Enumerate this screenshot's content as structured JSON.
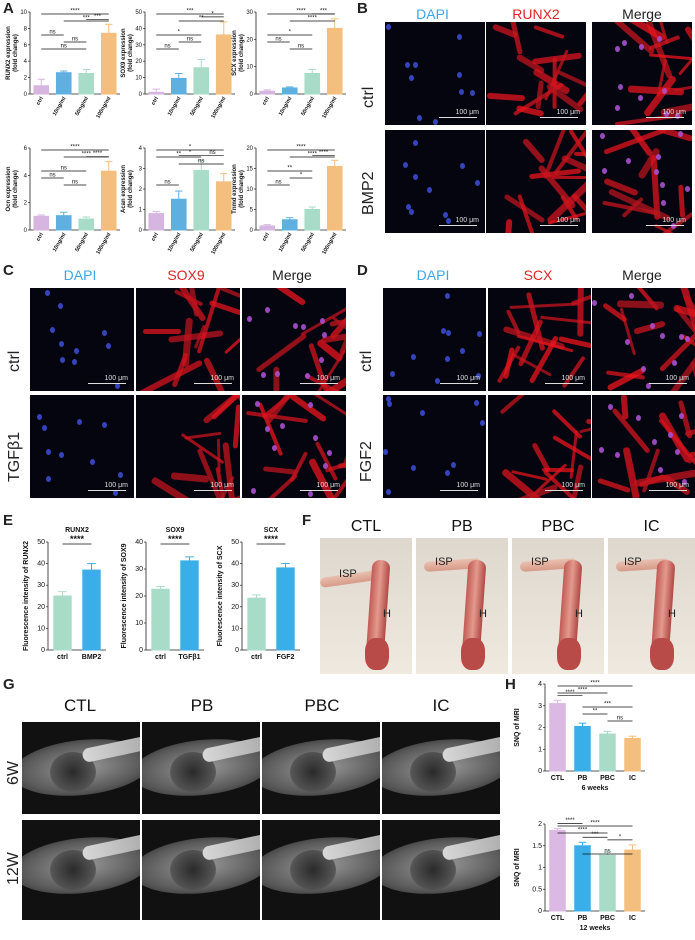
{
  "panels": {
    "A": "A",
    "B": "B",
    "C": "C",
    "D": "D",
    "E": "E",
    "F": "F",
    "G": "G",
    "H": "H"
  },
  "scale_bar": "100 μm",
  "panelA_charts": [
    {
      "id": "runx2",
      "ylabel": "RUNX2 expression",
      "ylabel2": "(fold change)",
      "categories": [
        "ctrl",
        "10ng/ml",
        "50ng/ml",
        "100ng/ml"
      ],
      "values": [
        1.0,
        2.6,
        2.5,
        7.4
      ],
      "errors": [
        0.8,
        0.2,
        0.5,
        1.1
      ],
      "ymax": 10,
      "yticks": [
        0,
        2,
        4,
        6,
        8,
        10
      ],
      "colors": [
        "#d6b6e0",
        "#5fb0e0",
        "#a8dcc8",
        "#f4bf7e"
      ],
      "sig": [
        {
          "a": 0,
          "b": 3,
          "t": "****"
        },
        {
          "a": 1,
          "b": 3,
          "t": "***"
        },
        {
          "a": 2,
          "b": 3,
          "t": "***"
        },
        {
          "a": 0,
          "b": 1,
          "t": "ns"
        },
        {
          "a": 1,
          "b": 2,
          "t": "ns"
        },
        {
          "a": 0,
          "b": 2,
          "t": "ns"
        }
      ]
    },
    {
      "id": "sox9",
      "ylabel": "SOX9 expression",
      "ylabel2": "(fold change)",
      "categories": [
        "ctrl",
        "10ng/ml",
        "50ng/ml",
        "100ng/ml"
      ],
      "values": [
        1.0,
        9.5,
        16.0,
        36.0
      ],
      "errors": [
        2.0,
        3.0,
        5.0,
        8.0
      ],
      "ymax": 50,
      "yticks": [
        0,
        10,
        20,
        30,
        40,
        50
      ],
      "colors": [
        "#d6b6e0",
        "#5fb0e0",
        "#a8dcc8",
        "#f4bf7e"
      ],
      "sig": [
        {
          "a": 0,
          "b": 3,
          "t": "***"
        },
        {
          "a": 1,
          "b": 3,
          "t": "**"
        },
        {
          "a": 2,
          "b": 3,
          "t": "*"
        },
        {
          "a": 0,
          "b": 2,
          "t": "*"
        },
        {
          "a": 1,
          "b": 2,
          "t": "ns"
        },
        {
          "a": 0,
          "b": 1,
          "t": "ns"
        }
      ]
    },
    {
      "id": "scx",
      "ylabel": "SCX expression",
      "ylabel2": "(fold change)",
      "categories": [
        "ctrl",
        "10ng/ml",
        "50ng/ml",
        "100ng/ml"
      ],
      "values": [
        1.0,
        2.2,
        7.5,
        24.0
      ],
      "errors": [
        0.5,
        0.4,
        1.5,
        3.5
      ],
      "ymax": 30,
      "yticks": [
        0,
        10,
        20,
        30
      ],
      "colors": [
        "#d6b6e0",
        "#5fb0e0",
        "#a8dcc8",
        "#f4bf7e"
      ],
      "sig": [
        {
          "a": 0,
          "b": 3,
          "t": "****"
        },
        {
          "a": 1,
          "b": 3,
          "t": "****"
        },
        {
          "a": 2,
          "b": 3,
          "t": "***"
        },
        {
          "a": 0,
          "b": 2,
          "t": "*"
        },
        {
          "a": 0,
          "b": 1,
          "t": "ns"
        },
        {
          "a": 1,
          "b": 2,
          "t": "ns"
        }
      ]
    },
    {
      "id": "ocn",
      "ylabel": "Ocn expression",
      "ylabel2": "(fold change)",
      "categories": [
        "ctrl",
        "10ng/ml",
        "50ng/ml",
        "100ng/ml"
      ],
      "values": [
        1.0,
        1.05,
        0.8,
        4.3
      ],
      "errors": [
        0.1,
        0.25,
        0.15,
        0.7
      ],
      "ymax": 6,
      "yticks": [
        0,
        2,
        4,
        6
      ],
      "colors": [
        "#d6b6e0",
        "#5fb0e0",
        "#a8dcc8",
        "#f4bf7e"
      ],
      "sig": [
        {
          "a": 0,
          "b": 3,
          "t": "****"
        },
        {
          "a": 1,
          "b": 3,
          "t": "****"
        },
        {
          "a": 2,
          "b": 3,
          "t": "****"
        },
        {
          "a": 0,
          "b": 2,
          "t": "ns"
        },
        {
          "a": 0,
          "b": 1,
          "t": "ns"
        },
        {
          "a": 1,
          "b": 2,
          "t": "ns"
        }
      ]
    },
    {
      "id": "acan",
      "ylabel": "Acan expression",
      "ylabel2": "(fold change)",
      "categories": [
        "ctrl",
        "10ng/ml",
        "50ng/ml",
        "100ng/ml"
      ],
      "values": [
        0.8,
        1.5,
        2.9,
        2.35
      ],
      "errors": [
        0.1,
        0.4,
        0.5,
        0.4
      ],
      "ymax": 4,
      "yticks": [
        0,
        1,
        2,
        3,
        4
      ],
      "colors": [
        "#d6b6e0",
        "#5fb0e0",
        "#a8dcc8",
        "#f4bf7e"
      ],
      "sig": [
        {
          "a": 0,
          "b": 3,
          "t": "*"
        },
        {
          "a": 0,
          "b": 2,
          "t": "**"
        },
        {
          "a": 1,
          "b": 3,
          "t": "ns"
        },
        {
          "a": 1,
          "b": 2,
          "t": "*"
        },
        {
          "a": 2,
          "b": 3,
          "t": "ns"
        },
        {
          "a": 0,
          "b": 1,
          "t": "ns"
        }
      ]
    },
    {
      "id": "tnmd",
      "ylabel": "Tnmd expression",
      "ylabel2": "(fold change)",
      "categories": [
        "ctrl",
        "10ng/ml",
        "50ng/ml",
        "100ng/ml"
      ],
      "values": [
        1.0,
        2.5,
        5.0,
        15.5
      ],
      "errors": [
        0.3,
        0.5,
        0.6,
        1.5
      ],
      "ymax": 20,
      "yticks": [
        0,
        5,
        10,
        15,
        20
      ],
      "colors": [
        "#d6b6e0",
        "#5fb0e0",
        "#a8dcc8",
        "#f4bf7e"
      ],
      "sig": [
        {
          "a": 0,
          "b": 3,
          "t": "****"
        },
        {
          "a": 1,
          "b": 3,
          "t": "****"
        },
        {
          "a": 2,
          "b": 3,
          "t": "****"
        },
        {
          "a": 0,
          "b": 2,
          "t": "**"
        },
        {
          "a": 1,
          "b": 2,
          "t": "*"
        },
        {
          "a": 0,
          "b": 1,
          "t": "ns"
        }
      ]
    }
  ],
  "panelB": {
    "cols": [
      "DAPI",
      "RUNX2",
      "Merge"
    ],
    "rows": [
      "ctrl",
      "BMP2"
    ]
  },
  "panelC": {
    "cols": [
      "DAPI",
      "SOX9",
      "Merge"
    ],
    "rows": [
      "ctrl",
      "TGFβ1"
    ]
  },
  "panelD": {
    "cols": [
      "DAPI",
      "SCX",
      "Merge"
    ],
    "rows": [
      "ctrl",
      "FGF2"
    ]
  },
  "panelE_charts": [
    {
      "id": "e1",
      "title": "RUNX2",
      "ylabel": "Fluorescence intensity of RUNX2",
      "categories": [
        "ctrl",
        "BMP2"
      ],
      "values": [
        25,
        37
      ],
      "errors": [
        2,
        3
      ],
      "ymax": 50,
      "yticks": [
        0,
        10,
        20,
        30,
        40,
        50
      ],
      "colors": [
        "#a8dcc8",
        "#3aaee8"
      ],
      "sig": "****"
    },
    {
      "id": "e2",
      "title": "SOX9",
      "ylabel": "Fluorescence intensity of SOX9",
      "categories": [
        "ctrl",
        "TGFβ1"
      ],
      "values": [
        22.5,
        33
      ],
      "errors": [
        1,
        1.5
      ],
      "ymax": 40,
      "yticks": [
        0,
        10,
        20,
        30,
        40
      ],
      "colors": [
        "#a8dcc8",
        "#3aaee8"
      ],
      "sig": "****"
    },
    {
      "id": "e3",
      "title": "SCX",
      "ylabel": "Fluorescence intensity of SCX",
      "categories": [
        "ctrl",
        "FGF2"
      ],
      "values": [
        24,
        38
      ],
      "errors": [
        1.5,
        2
      ],
      "ymax": 50,
      "yticks": [
        0,
        10,
        20,
        30,
        40,
        50
      ],
      "colors": [
        "#a8dcc8",
        "#3aaee8"
      ],
      "sig": "****"
    }
  ],
  "panelF": {
    "cols": [
      "CTL",
      "PB",
      "PBC",
      "IC"
    ],
    "labels": {
      "isp": "ISP",
      "h": "H"
    }
  },
  "panelG": {
    "cols": [
      "CTL",
      "PB",
      "PBC",
      "IC"
    ],
    "rows": [
      "6W",
      "12W"
    ]
  },
  "panelH_charts": [
    {
      "id": "h1",
      "ylabel": "SNQ of MRI",
      "xlabel": "6 weeks",
      "categories": [
        "CTL",
        "PB",
        "PBC",
        "IC"
      ],
      "values": [
        3.1,
        2.05,
        1.7,
        1.5
      ],
      "errors": [
        0.15,
        0.15,
        0.12,
        0.1
      ],
      "ymax": 4,
      "yticks": [
        0,
        1,
        2,
        3,
        4
      ],
      "colors": [
        "#dcb8e4",
        "#3aaee8",
        "#a8dcc8",
        "#f4bf7e"
      ],
      "sig": [
        {
          "a": 0,
          "b": 3,
          "t": "****"
        },
        {
          "a": 0,
          "b": 2,
          "t": "****"
        },
        {
          "a": 0,
          "b": 1,
          "t": "****"
        },
        {
          "a": 1,
          "b": 3,
          "t": "***"
        },
        {
          "a": 1,
          "b": 2,
          "t": "**"
        },
        {
          "a": 2,
          "b": 3,
          "t": "ns"
        }
      ]
    },
    {
      "id": "h2",
      "ylabel": "SNQ of MRI",
      "xlabel": "12 weeks",
      "categories": [
        "CTL",
        "PB",
        "PBC",
        "IC"
      ],
      "values": [
        1.85,
        1.5,
        1.28,
        1.4
      ],
      "errors": [
        0.05,
        0.08,
        0.07,
        0.12
      ],
      "ymax": 2.0,
      "yticks": [
        0.0,
        0.5,
        1.0,
        1.5,
        2.0
      ],
      "colors": [
        "#dcb8e4",
        "#3aaee8",
        "#a8dcc8",
        "#f4bf7e"
      ],
      "sig": [
        {
          "a": 0,
          "b": 3,
          "t": "****"
        },
        {
          "a": 0,
          "b": 2,
          "t": "****"
        },
        {
          "a": 0,
          "b": 1,
          "t": "****"
        },
        {
          "a": 1,
          "b": 2,
          "t": "***"
        },
        {
          "a": 1,
          "b": 3,
          "t": "ns"
        },
        {
          "a": 2,
          "b": 3,
          "t": "*"
        }
      ]
    }
  ]
}
